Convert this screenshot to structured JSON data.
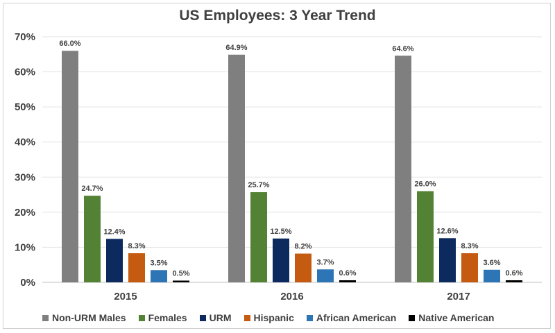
{
  "chart_data": {
    "type": "bar",
    "title": "US Employees: 3 Year Trend",
    "categories": [
      "2015",
      "2016",
      "2017"
    ],
    "series": [
      {
        "name": "Non-URM Males",
        "color": "#7f7f7f",
        "values": [
          66.0,
          64.9,
          64.6
        ],
        "labels": [
          "66.0%",
          "64.9%",
          "64.6%"
        ]
      },
      {
        "name": "Females",
        "color": "#548235",
        "values": [
          24.7,
          25.7,
          26.0
        ],
        "labels": [
          "24.7%",
          "25.7%",
          "26.0%"
        ]
      },
      {
        "name": "URM",
        "color": "#0d2a5e",
        "values": [
          12.4,
          12.5,
          12.6
        ],
        "labels": [
          "12.4%",
          "12.5%",
          "12.6%"
        ]
      },
      {
        "name": "Hispanic",
        "color": "#c55a11",
        "values": [
          8.3,
          8.2,
          8.3
        ],
        "labels": [
          "8.3%",
          "8.2%",
          "8.3%"
        ]
      },
      {
        "name": "African American",
        "color": "#2e75b6",
        "values": [
          3.5,
          3.7,
          3.6
        ],
        "labels": [
          "3.5%",
          "3.7%",
          "3.6%"
        ]
      },
      {
        "name": "Native American",
        "color": "#000000",
        "values": [
          0.5,
          0.6,
          0.6
        ],
        "labels": [
          "0.5%",
          "0.6%",
          "0.6%"
        ]
      }
    ],
    "ylim": [
      0,
      70
    ],
    "yticks": [
      0,
      10,
      20,
      30,
      40,
      50,
      60,
      70
    ],
    "ytick_labels": [
      "0%",
      "10%",
      "20%",
      "30%",
      "40%",
      "50%",
      "60%",
      "70%"
    ],
    "grid": true,
    "legend_position": "bottom"
  }
}
